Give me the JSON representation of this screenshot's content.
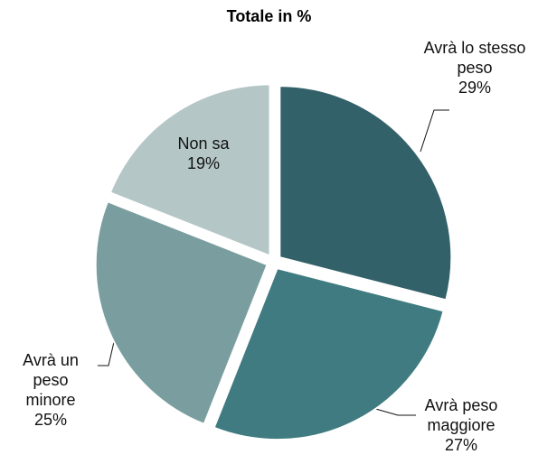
{
  "chart_data": {
    "type": "pie",
    "title": "Totale in %",
    "categories": [
      "Avrà lo stesso peso",
      "Avrà peso maggiore",
      "Avrà un peso minore",
      "Non sa"
    ],
    "values": [
      29,
      27,
      25,
      19
    ],
    "value_labels": [
      "29%",
      "27%",
      "25%",
      "19%"
    ],
    "colors": [
      "#336169",
      "#3f7b80",
      "#7a9e9f",
      "#b5c6c7"
    ]
  }
}
